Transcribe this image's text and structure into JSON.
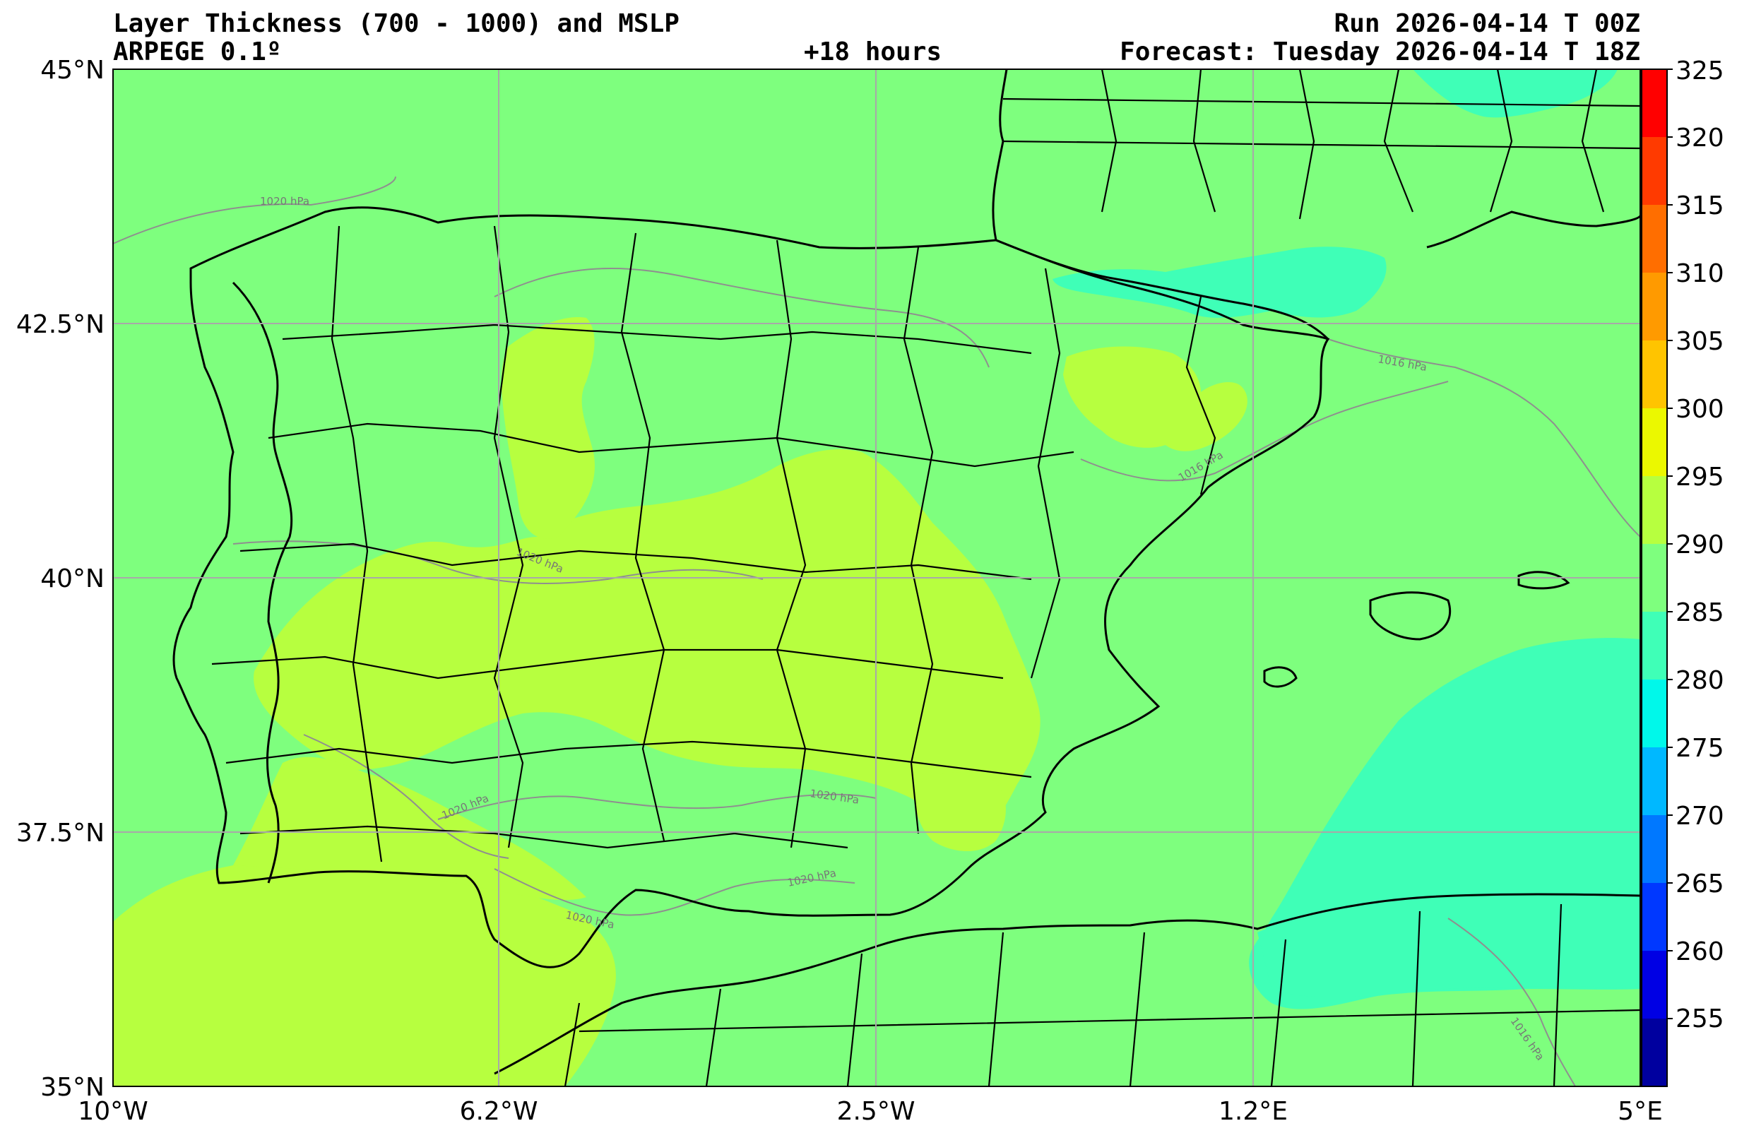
{
  "header": {
    "title": "Layer Thickness (700 - 1000) and MSLP",
    "model": "ARPEGE 0.1º",
    "lead": "+18 hours",
    "run": "Run 2026-04-14 T 00Z",
    "forecast": "Forecast: Tuesday 2026-04-14 T 18Z"
  },
  "axes": {
    "lat_labels": [
      "45°N",
      "42.5°N",
      "40°N",
      "37.5°N",
      "35°N"
    ],
    "lon_labels": [
      "10°W",
      "6.2°W",
      "2.5°W",
      "1.2°E",
      "5°E"
    ]
  },
  "colorbar": {
    "ticks": [
      "325",
      "320",
      "315",
      "310",
      "305",
      "300",
      "295",
      "290",
      "285",
      "280",
      "275",
      "270",
      "265",
      "260",
      "255"
    ],
    "colors": [
      "#ff0000",
      "#ff3a00",
      "#ff6e00",
      "#ff9a00",
      "#ffc400",
      "#ebf800",
      "#b7ff3f",
      "#7eff7e",
      "#3fffb7",
      "#00f8ea",
      "#00b8ff",
      "#0078ff",
      "#0038ff",
      "#0000e4",
      "#00009f"
    ]
  },
  "isobars": {
    "labels": [
      "1020 hPa",
      "1020 hPa",
      "1020 hPa",
      "1020 hPa",
      "1020 hPa",
      "1020 hPa",
      "1016 hPa",
      "1016 hPa",
      "1016 hPa"
    ]
  },
  "field_colors": {
    "background": "#7eff7e",
    "warm": "#b7ff3f",
    "cool": "#3fffb7"
  }
}
